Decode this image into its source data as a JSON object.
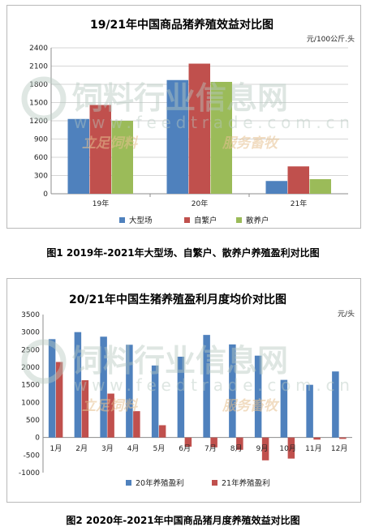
{
  "watermark": {
    "text": "饲料行业信息网",
    "url": "www.feedtrade.com.cn",
    "slogan_left": "立足饲料",
    "slogan_right": "服务畜牧"
  },
  "figure_captions": [
    "图1 2019年-2021年大型场、自繁户、散养户养殖盈利对比图",
    "图2 2020年-2021年中国商品猪月度养殖效益对比图"
  ],
  "chart_data": [
    {
      "type": "bar",
      "title": "19/21年中国商品猪养殖效益对比图",
      "unit": "元/100公斤.头",
      "categories": [
        "19年",
        "20年",
        "21年"
      ],
      "ylim": [
        0,
        2400
      ],
      "yticks": [
        0,
        300,
        600,
        900,
        1200,
        1500,
        1800,
        2100,
        2400
      ],
      "grid": true,
      "legend_position": "bottom",
      "series": [
        {
          "name": "大型场",
          "color": "#4f81bd",
          "values": [
            1230,
            1870,
            210
          ]
        },
        {
          "name": "自繁户",
          "color": "#c0504d",
          "values": [
            1460,
            2140,
            450
          ]
        },
        {
          "name": "散养户",
          "color": "#9bbb59",
          "values": [
            1200,
            1840,
            240
          ]
        }
      ]
    },
    {
      "type": "bar",
      "title": "20/21年中国生猪养殖盈利月度均价对比图",
      "unit": "元/头",
      "categories": [
        "1月",
        "2月",
        "3月",
        "4月",
        "5月",
        "6月",
        "7月",
        "8月",
        "9月",
        "10月",
        "11月",
        "12月"
      ],
      "ylim": [
        -1000,
        3500
      ],
      "yticks": [
        -1000,
        -500,
        0,
        500,
        1000,
        1500,
        2000,
        2500,
        3000,
        3500
      ],
      "grid": false,
      "legend_position": "bottom",
      "series": [
        {
          "name": "20年养殖盈利",
          "color": "#4f81bd",
          "values": [
            2800,
            3000,
            2870,
            2640,
            2050,
            2300,
            2920,
            2650,
            2330,
            1640,
            1500,
            1880
          ]
        },
        {
          "name": "21年养殖盈利",
          "color": "#c0504d",
          "values": [
            2150,
            1630,
            1250,
            750,
            350,
            -260,
            -280,
            -350,
            -650,
            -600,
            -60,
            -40
          ]
        }
      ]
    }
  ]
}
